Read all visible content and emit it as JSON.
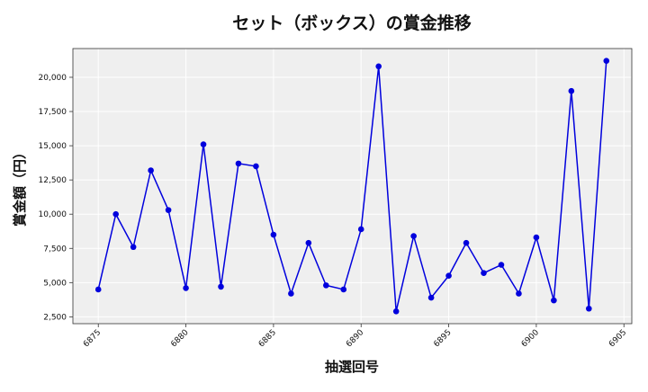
{
  "chart_data": {
    "type": "line",
    "title": "セット（ボックス）の賞金推移",
    "xlabel": "抽選回号",
    "ylabel": "賞金額（円）",
    "x": [
      6875,
      6876,
      6877,
      6878,
      6879,
      6880,
      6881,
      6882,
      6883,
      6884,
      6885,
      6886,
      6887,
      6888,
      6889,
      6890,
      6891,
      6892,
      6893,
      6894,
      6895,
      6896,
      6897,
      6898,
      6899,
      6900,
      6901,
      6902,
      6903,
      6904
    ],
    "series": [
      {
        "values": [
          4500,
          10000,
          7600,
          13200,
          10300,
          4600,
          15100,
          4700,
          13700,
          13500,
          8500,
          4200,
          7900,
          4800,
          4500,
          8900,
          20800,
          2900,
          8400,
          3900,
          5500,
          7900,
          5700,
          6300,
          4200,
          8300,
          3700,
          19000,
          3100,
          21200
        ],
        "color": "#0000dd"
      }
    ],
    "xticks": [
      "6875",
      "6880",
      "6885",
      "6890",
      "6895",
      "6900",
      "6905"
    ],
    "yticks": [
      "2,500",
      "5,000",
      "7,500",
      "10,000",
      "12,500",
      "15,000",
      "17,500",
      "20,000"
    ],
    "xlim": [
      6873.55,
      6905.45
    ],
    "ylim": [
      2000,
      22100
    ],
    "grid": true,
    "background": "#efefef"
  }
}
